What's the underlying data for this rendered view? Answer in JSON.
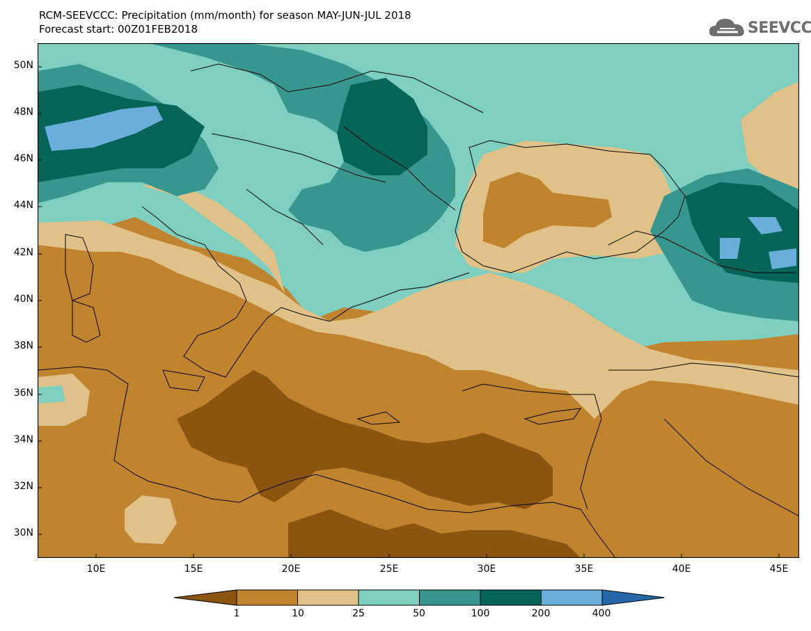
{
  "header": {
    "title_line1": "RCM-SEEVCCC: Precipitation (mm/month) for season MAY-JUN-JUL 2018",
    "title_line2": "Forecast start: 00Z01FEB2018",
    "logo_text": "SEEVCCC"
  },
  "map": {
    "lat_labels": [
      "50N",
      "48N",
      "46N",
      "44N",
      "42N",
      "40N",
      "38N",
      "36N",
      "34N",
      "32N",
      "30N"
    ],
    "lon_labels": [
      "10E",
      "15E",
      "20E",
      "25E",
      "30E",
      "35E",
      "40E",
      "45E"
    ],
    "lon_range": [
      7,
      46
    ],
    "lat_range": [
      29,
      51
    ]
  },
  "legend": {
    "ticks": [
      "1",
      "10",
      "25",
      "50",
      "100",
      "200",
      "400"
    ],
    "colors": [
      "#8b5511",
      "#c0842f",
      "#e0c188",
      "#7ecfc0",
      "#37978e",
      "#036457",
      "#6aaedb",
      "#2468a8"
    ]
  },
  "colors": {
    "band1_10": "#c0842f",
    "band_lt1": "#8b5511",
    "band10_25": "#e0c188",
    "band25_50": "#7ecfc0",
    "band50_100": "#37978e",
    "band100_200": "#036457",
    "band200_400": "#6aaedb"
  }
}
